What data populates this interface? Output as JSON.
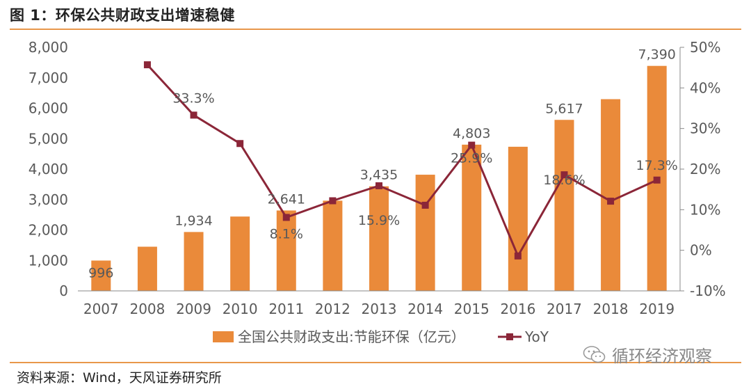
{
  "header": {
    "title": "图 1：环保公共财政支出增速稳健"
  },
  "footer": {
    "source": "资料来源：Wind，天风证券研究所",
    "watermark": "循环经济观察",
    "watermark_icon": "wechat-icon"
  },
  "colors": {
    "bar": "#EA8A3A",
    "line": "#8B2638",
    "rule": "#E8974A",
    "axis": "#888888",
    "text": "#595959"
  },
  "chart_data": {
    "type": "bar",
    "categories": [
      "2007",
      "2008",
      "2009",
      "2010",
      "2011",
      "2012",
      "2013",
      "2014",
      "2015",
      "2016",
      "2017",
      "2018",
      "2019"
    ],
    "series": [
      {
        "name": "全国公共财政支出:节能环保（亿元）",
        "type": "bar",
        "axis": "left",
        "values": [
          996,
          1451,
          1934,
          2442,
          2641,
          2963,
          3435,
          3816,
          4803,
          4734,
          5617,
          6297,
          7390
        ]
      },
      {
        "name": "YoY",
        "type": "line",
        "axis": "right",
        "values": [
          null,
          45.7,
          33.3,
          26.3,
          8.1,
          12.2,
          15.9,
          11.1,
          25.9,
          -1.4,
          18.6,
          12.1,
          17.3
        ]
      }
    ],
    "bar_labels": [
      {
        "index": 0,
        "text": "996"
      },
      {
        "index": 2,
        "text": "1,934"
      },
      {
        "index": 4,
        "text": "2,641"
      },
      {
        "index": 6,
        "text": "3,435"
      },
      {
        "index": 8,
        "text": "4,803"
      },
      {
        "index": 10,
        "text": "5,617"
      },
      {
        "index": 12,
        "text": "7,390"
      }
    ],
    "line_labels": [
      {
        "index": 2,
        "text": "33.3%"
      },
      {
        "index": 4,
        "text": "8.1%"
      },
      {
        "index": 6,
        "text": "15.9%"
      },
      {
        "index": 8,
        "text": "25.9%"
      },
      {
        "index": 10,
        "text": "18.6%"
      },
      {
        "index": 12,
        "text": "17.3%"
      }
    ],
    "y_left": {
      "ylim": [
        0,
        8000
      ],
      "ticks": [
        0,
        1000,
        2000,
        3000,
        4000,
        5000,
        6000,
        7000,
        8000
      ],
      "tick_labels": [
        "0",
        "1,000",
        "2,000",
        "3,000",
        "4,000",
        "5,000",
        "6,000",
        "7,000",
        "8,000"
      ]
    },
    "y_right": {
      "ylim": [
        -10,
        50
      ],
      "ticks": [
        -10,
        0,
        10,
        20,
        30,
        40,
        50
      ],
      "tick_labels": [
        "-10%",
        "0%",
        "10%",
        "20%",
        "30%",
        "40%",
        "50%"
      ]
    },
    "grid": false,
    "legend": {
      "position": "bottom",
      "entries": [
        "全国公共财政支出:节能环保（亿元）",
        "YoY"
      ]
    }
  }
}
